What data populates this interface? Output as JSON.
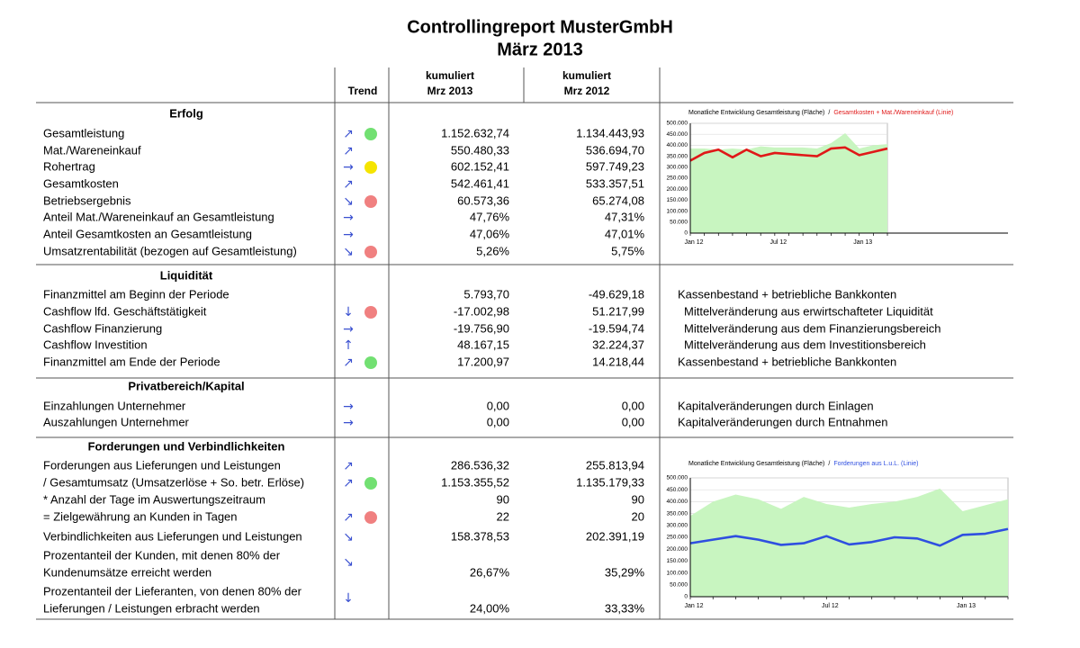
{
  "header": {
    "title": "Controllingreport MusterGmbH",
    "subtitle": "März 2013"
  },
  "columns": {
    "trend": "Trend",
    "current": [
      "kumuliert",
      "Mrz 2013"
    ],
    "previous": [
      "kumuliert",
      "Mrz 2012"
    ]
  },
  "sections": [
    {
      "title": "Erfolg",
      "rows": [
        {
          "label": "Gesamtleistung",
          "trend": "↗",
          "status": "#72e072",
          "current": "1.152.632,74",
          "previous": "1.134.443,93"
        },
        {
          "label": "Mat./Wareneinkauf",
          "trend": "↗",
          "current": "550.480,33",
          "previous": "536.694,70"
        },
        {
          "label": "Rohertrag",
          "trend": "→",
          "status": "#f5e400",
          "current": "602.152,41",
          "previous": "597.749,23"
        },
        {
          "label": "Gesamtkosten",
          "trend": "↗",
          "current": "542.461,41",
          "previous": "533.357,51"
        },
        {
          "label": "Betriebsergebnis",
          "trend": "↘",
          "status": "#f08080",
          "current": "60.573,36",
          "previous": "65.274,08"
        },
        {
          "label": "Anteil Mat./Wareneinkauf an Gesamtleistung",
          "trend": "→",
          "current": "47,76%",
          "previous": "47,31%"
        },
        {
          "label": "Anteil Gesamtkosten an Gesamtleistung",
          "trend": "→",
          "current": "47,06%",
          "previous": "47,01%"
        },
        {
          "label": "Umsatzrentabilität (bezogen auf Gesamtleistung)",
          "trend": "↘",
          "status": "#f08080",
          "current": "5,26%",
          "previous": "5,75%"
        }
      ]
    },
    {
      "title": "Liquidität",
      "rows": [
        {
          "label": "Finanzmittel am Beginn der Periode",
          "current": "5.793,70",
          "previous": "-49.629,18",
          "note": "Kassenbestand + betriebliche Bankkonten"
        },
        {
          "label": "Cashflow lfd. Geschäftstätigkeit",
          "trend": "↓",
          "status": "#f08080",
          "current": "-17.002,98",
          "previous": "51.217,99",
          "note": "Mittelveränderung aus erwirtschafteter Liquidität"
        },
        {
          "label": "Cashflow Finanzierung",
          "trend": "→",
          "current": "-19.756,90",
          "previous": "-19.594,74",
          "note": "Mittelveränderung aus dem Finanzierungsbereich"
        },
        {
          "label": "Cashflow Investition",
          "trend": "↑",
          "current": "48.167,15",
          "previous": "32.224,37",
          "note": "Mittelveränderung aus dem Investitionsbereich"
        },
        {
          "label": "Finanzmittel am Ende der Periode",
          "trend": "↗",
          "status": "#72e072",
          "current": "17.200,97",
          "previous": "14.218,44",
          "note": "Kassenbestand + betriebliche Bankkonten"
        }
      ]
    },
    {
      "title": "Privatbereich/Kapital",
      "rows": [
        {
          "label": "Einzahlungen Unternehmer",
          "trend": "→",
          "current": "0,00",
          "previous": "0,00",
          "note": "Kapitalveränderungen durch Einlagen"
        },
        {
          "label": "Auszahlungen Unternehmer",
          "trend": "→",
          "current": "0,00",
          "previous": "0,00",
          "note": "Kapitalveränderungen durch Entnahmen"
        }
      ]
    },
    {
      "title": "Forderungen und Verbindlichkeiten",
      "rows": [
        {
          "label": "Forderungen aus Lieferungen und Leistungen",
          "trend": "↗",
          "current": "286.536,32",
          "previous": "255.813,94"
        },
        {
          "label": "/ Gesamtumsatz (Umsatzerlöse + So. betr. Erlöse)",
          "trend": "↗",
          "status": "#72e072",
          "current": "1.153.355,52",
          "previous": "1.135.179,33"
        },
        {
          "label": "* Anzahl der Tage im Auswertungszeitraum",
          "current": "90",
          "previous": "90"
        },
        {
          "label": "= Zielgewährung an Kunden in Tagen",
          "trend": "↗",
          "status": "#f08080",
          "current": "22",
          "previous": "20"
        },
        {
          "label": "Verbindlichkeiten aus Lieferungen und Leistungen",
          "trend": "↘",
          "current": "158.378,53",
          "previous": "202.391,19"
        },
        {
          "label_lines": [
            "Prozentanteil der Kunden, mit denen 80% der",
            "Kundenumsätze erreicht werden"
          ],
          "trend": "↘",
          "current": "26,67%",
          "previous": "35,29%"
        },
        {
          "label_lines": [
            "Prozentanteil der Lieferanten, von denen 80% der",
            "Lieferungen / Leistungen erbracht werden"
          ],
          "trend": "↓",
          "current": "24,00%",
          "previous": "33,33%"
        }
      ]
    }
  ],
  "chart_data": [
    {
      "type": "area-line",
      "legend_separator": "/",
      "categories": [
        "Jan 12",
        null,
        null,
        null,
        null,
        null,
        "Jul 12",
        null,
        null,
        null,
        null,
        null,
        "Jan 13",
        null,
        null
      ],
      "series": [
        {
          "name": "Monatliche Entwicklung Gesamtleistung (Fläche)",
          "type": "area",
          "color": "#c8f5c0",
          "values": [
            385000,
            385000,
            380000,
            385000,
            380000,
            395000,
            390000,
            390000,
            390000,
            385000,
            410000,
            455000,
            385000,
            400000,
            405000
          ]
        },
        {
          "name": "Gesamtkosten + Mat./Wareneinkauf (Linie)",
          "type": "line",
          "color": "#e01818",
          "values": [
            330000,
            365000,
            380000,
            345000,
            380000,
            350000,
            365000,
            360000,
            355000,
            350000,
            385000,
            390000,
            355000,
            370000,
            385000
          ]
        }
      ],
      "ylim": [
        0,
        500000
      ],
      "yticks": [
        0,
        {
          "value": 50000,
          "label": "50.000"
        },
        {
          "value": 100000,
          "label": "100.000"
        },
        {
          "value": 150000,
          "label": "150.000"
        },
        {
          "value": 200000,
          "label": "200.000"
        },
        {
          "value": 250000,
          "label": "250.000"
        },
        {
          "value": 300000,
          "label": "300.000"
        },
        {
          "value": 350000,
          "label": "350.000"
        },
        {
          "value": 400000,
          "label": "400.000"
        },
        {
          "value": 450000,
          "label": "450.000"
        },
        {
          "value": 500000,
          "label": "500.000"
        }
      ],
      "grid": true
    },
    {
      "type": "area-line",
      "legend_separator": "/",
      "categories": [
        "Jan 12",
        null,
        null,
        null,
        null,
        null,
        "Jul 12",
        null,
        null,
        null,
        null,
        null,
        "Jan 13",
        null,
        null
      ],
      "series": [
        {
          "name": "Monatliche Entwicklung Gesamtleistung (Fläche)",
          "type": "area",
          "color": "#c8f5c0",
          "values": [
            340000,
            400000,
            430000,
            410000,
            370000,
            420000,
            390000,
            375000,
            390000,
            400000,
            420000,
            455000,
            360000,
            385000,
            410000
          ]
        },
        {
          "name": "Forderungen aus L.u.L. (Linie)",
          "type": "line",
          "color": "#2f4fe0",
          "values": [
            225000,
            240000,
            255000,
            240000,
            218000,
            225000,
            255000,
            220000,
            230000,
            250000,
            245000,
            215000,
            260000,
            265000,
            285000
          ]
        }
      ],
      "ylim": [
        0,
        500000
      ],
      "yticks": [
        0,
        {
          "value": 50000,
          "label": "50.000"
        },
        {
          "value": 100000,
          "label": "100.000"
        },
        {
          "value": 150000,
          "label": "150.000"
        },
        {
          "value": 200000,
          "label": "200.000"
        },
        {
          "value": 250000,
          "label": "250.000"
        },
        {
          "value": 300000,
          "label": "300.000"
        },
        {
          "value": 350000,
          "label": "350.000"
        },
        {
          "value": 400000,
          "label": "400.000"
        },
        {
          "value": 450000,
          "label": "450.000"
        },
        {
          "value": 500000,
          "label": "500.000"
        }
      ],
      "grid": true
    }
  ]
}
